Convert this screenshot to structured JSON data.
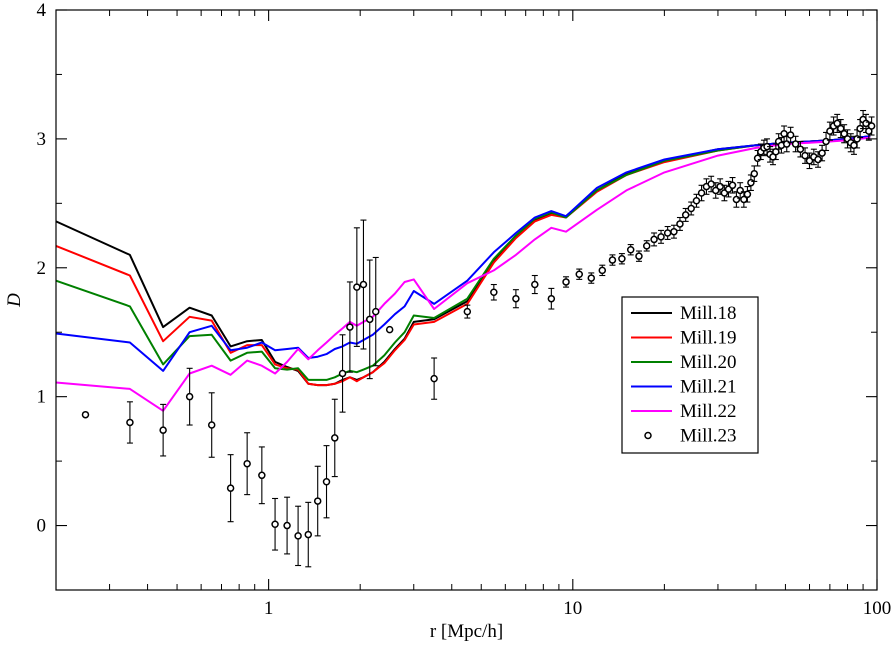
{
  "chart_data": {
    "type": "line",
    "title": "",
    "xlabel": "r [Mpc/h]",
    "ylabel": "D",
    "xscale": "log",
    "xlim": [
      0.2,
      100
    ],
    "ylim": [
      -0.5,
      4
    ],
    "x_ticks": [
      1,
      10,
      100
    ],
    "x_tick_labels": [
      "1",
      "10",
      "100"
    ],
    "y_ticks": [
      0,
      1,
      2,
      3,
      4
    ],
    "y_tick_labels": [
      "0",
      "1",
      "2",
      "3",
      "4"
    ],
    "grid": false,
    "legend_position": "middle-right",
    "series": [
      {
        "name": "Mill.18",
        "color": "#000000",
        "style": "line",
        "x": [
          0.2,
          0.35,
          0.45,
          0.55,
          0.65,
          0.75,
          0.85,
          0.95,
          1.05,
          1.15,
          1.25,
          1.35,
          1.45,
          1.55,
          1.65,
          1.75,
          1.85,
          1.95,
          2.05,
          2.2,
          2.4,
          2.6,
          2.8,
          3.0,
          3.5,
          4.5,
          5.5,
          6.5,
          7.5,
          8.5,
          9.5,
          12,
          15,
          20,
          30,
          40,
          50,
          60,
          70,
          80,
          95
        ],
        "y": [
          2.36,
          2.1,
          1.54,
          1.69,
          1.63,
          1.39,
          1.43,
          1.44,
          1.27,
          1.23,
          1.2,
          1.1,
          1.09,
          1.09,
          1.1,
          1.13,
          1.15,
          1.13,
          1.15,
          1.19,
          1.27,
          1.37,
          1.45,
          1.58,
          1.6,
          1.74,
          2.05,
          2.24,
          2.37,
          2.42,
          2.4,
          2.6,
          2.73,
          2.83,
          2.92,
          2.95,
          2.97,
          2.98,
          2.99,
          3.0,
          3.02
        ]
      },
      {
        "name": "Mill.19",
        "color": "#ff0000",
        "style": "line",
        "x": [
          0.2,
          0.35,
          0.45,
          0.55,
          0.65,
          0.75,
          0.85,
          0.95,
          1.05,
          1.15,
          1.25,
          1.35,
          1.45,
          1.55,
          1.65,
          1.75,
          1.85,
          1.95,
          2.05,
          2.2,
          2.4,
          2.6,
          2.8,
          3.0,
          3.5,
          4.5,
          5.5,
          6.5,
          7.5,
          8.5,
          9.5,
          12,
          15,
          20,
          30,
          40,
          50,
          60,
          70,
          80,
          95
        ],
        "y": [
          2.17,
          1.94,
          1.43,
          1.62,
          1.59,
          1.34,
          1.4,
          1.4,
          1.25,
          1.22,
          1.21,
          1.1,
          1.09,
          1.09,
          1.1,
          1.12,
          1.15,
          1.12,
          1.15,
          1.19,
          1.26,
          1.36,
          1.44,
          1.56,
          1.58,
          1.72,
          2.04,
          2.23,
          2.36,
          2.41,
          2.39,
          2.59,
          2.72,
          2.82,
          2.91,
          2.95,
          2.97,
          2.98,
          2.99,
          3.0,
          3.02
        ]
      },
      {
        "name": "Mill.20",
        "color": "#008000",
        "style": "line",
        "x": [
          0.2,
          0.35,
          0.45,
          0.55,
          0.65,
          0.75,
          0.85,
          0.95,
          1.05,
          1.15,
          1.25,
          1.35,
          1.45,
          1.55,
          1.65,
          1.75,
          1.85,
          1.95,
          2.05,
          2.2,
          2.4,
          2.6,
          2.8,
          3.0,
          3.5,
          4.5,
          5.5,
          6.5,
          7.5,
          8.5,
          9.5,
          12,
          15,
          20,
          30,
          40,
          50,
          60,
          70,
          80,
          95
        ],
        "y": [
          1.9,
          1.7,
          1.25,
          1.47,
          1.48,
          1.28,
          1.34,
          1.35,
          1.22,
          1.21,
          1.22,
          1.13,
          1.13,
          1.13,
          1.15,
          1.18,
          1.2,
          1.19,
          1.21,
          1.24,
          1.32,
          1.42,
          1.5,
          1.63,
          1.61,
          1.76,
          2.07,
          2.25,
          2.38,
          2.43,
          2.39,
          2.6,
          2.72,
          2.83,
          2.91,
          2.95,
          2.97,
          2.98,
          2.99,
          3.0,
          3.02
        ]
      },
      {
        "name": "Mill.21",
        "color": "#0000ff",
        "style": "line",
        "x": [
          0.2,
          0.35,
          0.45,
          0.55,
          0.65,
          0.75,
          0.85,
          0.95,
          1.05,
          1.15,
          1.25,
          1.35,
          1.45,
          1.55,
          1.65,
          1.75,
          1.85,
          1.95,
          2.05,
          2.2,
          2.4,
          2.6,
          2.8,
          3.0,
          3.5,
          4.5,
          5.5,
          6.5,
          7.5,
          8.5,
          9.5,
          12,
          15,
          20,
          30,
          40,
          50,
          60,
          70,
          80,
          95
        ],
        "y": [
          1.49,
          1.42,
          1.2,
          1.5,
          1.55,
          1.36,
          1.38,
          1.42,
          1.36,
          1.37,
          1.38,
          1.3,
          1.31,
          1.33,
          1.37,
          1.39,
          1.42,
          1.41,
          1.44,
          1.48,
          1.56,
          1.64,
          1.7,
          1.82,
          1.72,
          1.9,
          2.12,
          2.27,
          2.39,
          2.44,
          2.4,
          2.62,
          2.74,
          2.84,
          2.92,
          2.95,
          2.97,
          2.98,
          2.99,
          3.0,
          3.02
        ]
      },
      {
        "name": "Mill.22",
        "color": "#ff00ff",
        "style": "line",
        "x": [
          0.2,
          0.35,
          0.45,
          0.55,
          0.65,
          0.75,
          0.85,
          0.95,
          1.05,
          1.15,
          1.25,
          1.35,
          1.45,
          1.55,
          1.65,
          1.75,
          1.85,
          1.95,
          2.05,
          2.2,
          2.4,
          2.6,
          2.8,
          3.0,
          3.5,
          4.5,
          5.5,
          6.5,
          7.5,
          8.5,
          9.5,
          12,
          15,
          20,
          30,
          40,
          50,
          60,
          70,
          80,
          95
        ],
        "y": [
          1.11,
          1.06,
          0.89,
          1.18,
          1.24,
          1.17,
          1.28,
          1.24,
          1.18,
          1.27,
          1.37,
          1.29,
          1.36,
          1.42,
          1.48,
          1.53,
          1.58,
          1.55,
          1.58,
          1.62,
          1.72,
          1.8,
          1.89,
          1.91,
          1.68,
          1.88,
          1.98,
          2.1,
          2.22,
          2.31,
          2.28,
          2.45,
          2.6,
          2.74,
          2.87,
          2.93,
          2.96,
          2.97,
          2.98,
          2.99,
          3.01
        ]
      },
      {
        "name": "Mill.23",
        "color": "#000000",
        "style": "markers",
        "x": [
          0.25,
          0.35,
          0.45,
          0.55,
          0.65,
          0.75,
          0.85,
          0.95,
          1.05,
          1.15,
          1.25,
          1.35,
          1.45,
          1.55,
          1.65,
          1.75,
          1.85,
          1.95,
          2.05,
          2.15,
          2.25,
          2.5,
          3.5,
          4.5,
          5.5,
          6.5,
          7.5,
          8.5,
          9.5,
          10.5,
          11.5,
          12.5,
          13.5,
          14.5,
          15.5,
          16.5,
          17.5,
          18.5,
          19.5,
          20.5,
          21.5,
          22.5,
          23.5,
          24.5,
          25.5,
          26.5,
          27.5,
          28.5,
          29.5,
          30.5,
          31.5,
          32.5,
          33.5,
          34.5,
          35.5,
          36.5,
          37.5,
          38.5,
          39.5,
          40.5,
          41.5,
          42.5,
          43.5,
          44.5,
          45.5,
          46.5,
          47.5,
          48.5,
          49.5,
          50.5,
          52,
          54,
          56,
          58,
          60,
          62,
          64,
          66,
          68,
          70,
          72,
          74,
          76,
          78,
          80,
          82,
          84,
          86,
          88,
          90,
          92,
          94,
          96
        ],
        "y": [
          0.86,
          0.8,
          0.74,
          1.0,
          0.78,
          0.29,
          0.48,
          0.39,
          0.01,
          0.0,
          -0.08,
          -0.07,
          0.19,
          0.34,
          0.68,
          1.18,
          1.54,
          1.85,
          1.87,
          1.6,
          1.66,
          1.52,
          1.14,
          1.66,
          1.81,
          1.76,
          1.87,
          1.76,
          1.89,
          1.95,
          1.92,
          1.98,
          2.06,
          2.07,
          2.14,
          2.09,
          2.17,
          2.22,
          2.24,
          2.27,
          2.28,
          2.34,
          2.41,
          2.46,
          2.52,
          2.58,
          2.63,
          2.65,
          2.6,
          2.63,
          2.58,
          2.61,
          2.64,
          2.53,
          2.6,
          2.53,
          2.57,
          2.66,
          2.73,
          2.85,
          2.9,
          2.93,
          2.94,
          2.88,
          2.86,
          2.9,
          2.98,
          2.95,
          3.04,
          2.96,
          3.03,
          2.96,
          2.92,
          2.87,
          2.83,
          2.86,
          2.84,
          2.89,
          2.98,
          3.06,
          3.1,
          3.12,
          3.08,
          3.04,
          3.0,
          2.97,
          2.95,
          3.0,
          3.08,
          3.15,
          3.12,
          3.06,
          3.1
        ],
        "yerr": [
          0,
          0.16,
          0.2,
          0.22,
          0.25,
          0.26,
          0.24,
          0.22,
          0.2,
          0.22,
          0.23,
          0.25,
          0.27,
          0.28,
          0.3,
          0.3,
          0.35,
          0.46,
          0.5,
          0.46,
          0.42,
          0,
          0.16,
          0.05,
          0.06,
          0.07,
          0.07,
          0.08,
          0.04,
          0.04,
          0.04,
          0.04,
          0.04,
          0.04,
          0.04,
          0.04,
          0.04,
          0.05,
          0.05,
          0.05,
          0.05,
          0.05,
          0.05,
          0.05,
          0.05,
          0.06,
          0.06,
          0.06,
          0.06,
          0.06,
          0.06,
          0.06,
          0.06,
          0.06,
          0.06,
          0.06,
          0.06,
          0.06,
          0.06,
          0.06,
          0.06,
          0.06,
          0.06,
          0.06,
          0.06,
          0.06,
          0.06,
          0.06,
          0.06,
          0.06,
          0.06,
          0.06,
          0.06,
          0.06,
          0.06,
          0.06,
          0.06,
          0.06,
          0.07,
          0.07,
          0.07,
          0.07,
          0.07,
          0.07,
          0.07,
          0.07,
          0.07,
          0.07,
          0.07,
          0.07,
          0.07,
          0.07,
          0.07
        ]
      }
    ]
  }
}
